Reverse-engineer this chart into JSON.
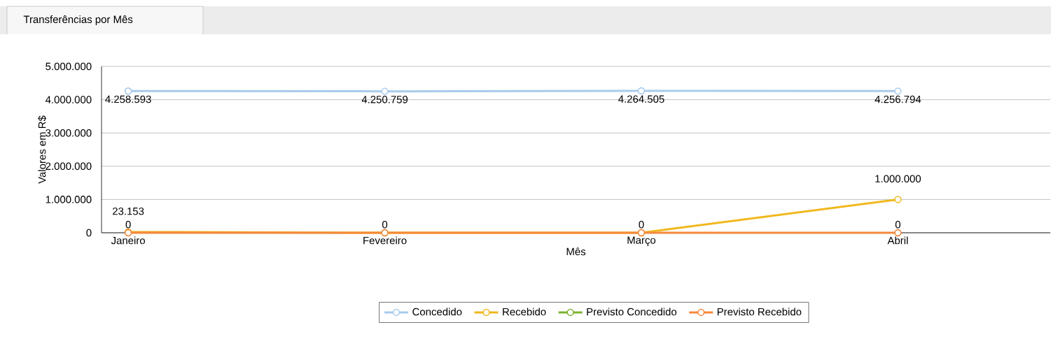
{
  "chart_data": {
    "type": "line",
    "title": "Transferências por Mês",
    "xlabel": "Mês",
    "ylabel": "Valores em R$",
    "categories": [
      "Janeiro",
      "Fevereiro",
      "Março",
      "Abril"
    ],
    "series": [
      {
        "name": "Concedido",
        "color": "#a9cbec",
        "values": [
          4258593,
          4250759,
          4264505,
          4256794
        ],
        "value_labels": [
          "4.258.593",
          "4.250.759",
          "4.264.505",
          "4.256.794"
        ]
      },
      {
        "name": "Recebido",
        "color": "#f0b81e",
        "values": [
          23153,
          0,
          0,
          1000000
        ],
        "value_labels": [
          "23.153",
          null,
          null,
          "1.000.000"
        ]
      },
      {
        "name": "Previsto Concedido",
        "color": "#7cb32e",
        "values": [
          null,
          null,
          null,
          null
        ]
      },
      {
        "name": "Previsto Recebido",
        "color": "#f5883c",
        "values": [
          0,
          0,
          0,
          0
        ],
        "value_labels": [
          "0",
          "0",
          "0",
          "0"
        ]
      }
    ],
    "ylim": [
      0,
      5000000
    ],
    "yticks": [
      {
        "value": 0,
        "label": "0"
      },
      {
        "value": 1000000,
        "label": "1.000.000"
      },
      {
        "value": 2000000,
        "label": "2.000.000"
      },
      {
        "value": 3000000,
        "label": "3.000.000"
      },
      {
        "value": 4000000,
        "label": "4.000.000"
      },
      {
        "value": 5000000,
        "label": "5.000.000"
      }
    ],
    "grid": "y",
    "legend": "bottom",
    "marker": "circle",
    "line_style": "solid"
  }
}
